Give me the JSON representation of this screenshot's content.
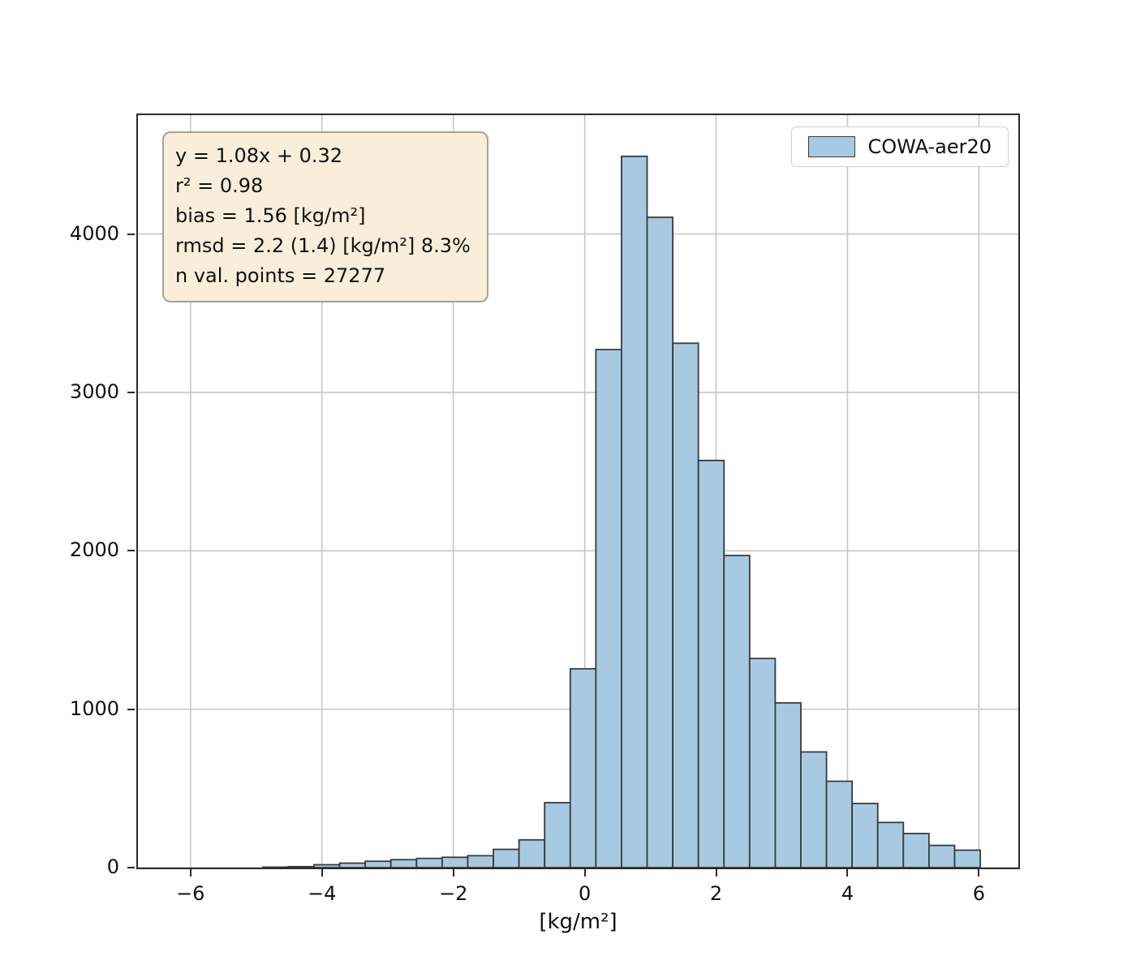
{
  "annotation": {
    "line1": "y = 1.08x + 0.32",
    "line2": "r² = 0.98",
    "line3": "bias = 1.56 [kg/m²]",
    "line4": "rmsd = 2.2 (1.4) [kg/m²] 8.3%",
    "line5": "n val. points = 27277"
  },
  "legend": {
    "label": "COWA-aer20"
  },
  "colors": {
    "bar_fill": "#a8c9e2",
    "bar_edge": "#3a3a3a",
    "grid": "#c6c6c6",
    "axis": "#2b2b2b",
    "annotation_bg": "#faeeda",
    "annotation_border": "#a9a291"
  },
  "chart_data": {
    "type": "bar",
    "title": "",
    "xlabel": "[kg/m²]",
    "ylabel": "",
    "xlim": [
      -6.8,
      6.6
    ],
    "ylim": [
      0,
      4750
    ],
    "xticks": [
      -6,
      -4,
      -2,
      0,
      2,
      4,
      6
    ],
    "yticks": [
      0,
      1000,
      2000,
      3000,
      4000
    ],
    "grid": true,
    "legend_position": "upper right",
    "series": [
      {
        "name": "COWA-aer20",
        "bin_start": -4.9,
        "bin_width": 0.39,
        "counts": [
          3,
          6,
          18,
          28,
          40,
          50,
          58,
          65,
          75,
          115,
          175,
          410,
          1255,
          3270,
          4490,
          4105,
          3310,
          2570,
          1970,
          1320,
          1040,
          730,
          545,
          405,
          285,
          215,
          140,
          110
        ]
      }
    ]
  }
}
